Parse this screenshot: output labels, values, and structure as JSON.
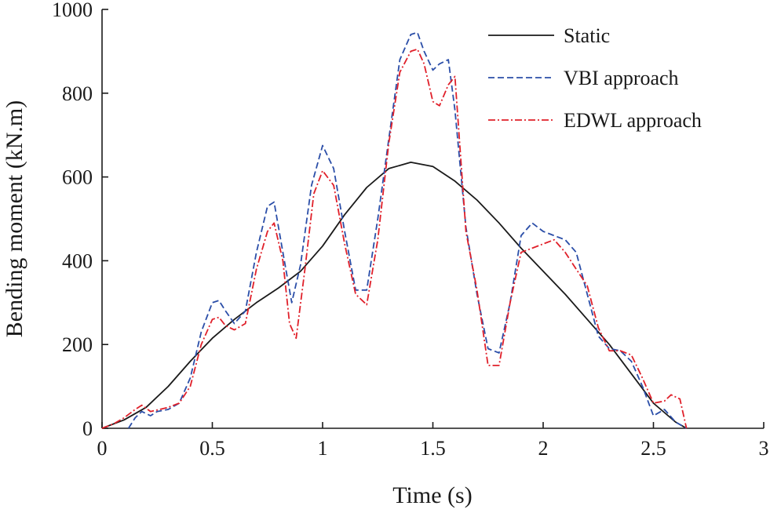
{
  "chart_data": {
    "type": "line",
    "title": "",
    "xlabel": "Time (s)",
    "ylabel": "Bending moment (kN.m)",
    "xlim": [
      0,
      3
    ],
    "ylim": [
      0,
      1000
    ],
    "xticks": [
      "0",
      "0.5",
      "1",
      "1.5",
      "2",
      "2.5",
      "3"
    ],
    "yticks": [
      "0",
      "200",
      "400",
      "600",
      "800",
      "1000"
    ],
    "grid": false,
    "legend_position": "top-right",
    "series": [
      {
        "name": "Static",
        "color": "#1a1a1a",
        "style": "solid",
        "x": [
          0,
          0.1,
          0.2,
          0.3,
          0.4,
          0.5,
          0.6,
          0.7,
          0.8,
          0.9,
          1.0,
          1.1,
          1.2,
          1.3,
          1.4,
          1.5,
          1.6,
          1.7,
          1.8,
          1.9,
          2.0,
          2.1,
          2.2,
          2.3,
          2.4,
          2.5,
          2.6,
          2.65
        ],
        "y": [
          0,
          20,
          50,
          100,
          160,
          215,
          260,
          300,
          335,
          375,
          435,
          510,
          575,
          620,
          635,
          625,
          590,
          545,
          490,
          430,
          375,
          320,
          260,
          200,
          130,
          60,
          15,
          0
        ]
      },
      {
        "name": "VBI approach",
        "color": "#2b4ea8",
        "style": "dashed",
        "x": [
          0.12,
          0.15,
          0.18,
          0.22,
          0.25,
          0.3,
          0.35,
          0.4,
          0.45,
          0.5,
          0.53,
          0.56,
          0.6,
          0.65,
          0.7,
          0.75,
          0.78,
          0.82,
          0.86,
          0.9,
          0.95,
          1.0,
          1.05,
          1.1,
          1.15,
          1.2,
          1.25,
          1.3,
          1.35,
          1.4,
          1.43,
          1.46,
          1.5,
          1.53,
          1.57,
          1.6,
          1.65,
          1.7,
          1.75,
          1.8,
          1.85,
          1.9,
          1.95,
          2.0,
          2.05,
          2.1,
          2.15,
          2.2,
          2.25,
          2.3,
          2.35,
          2.4,
          2.45,
          2.5,
          2.55,
          2.6,
          2.65
        ],
        "y": [
          0,
          25,
          40,
          30,
          40,
          45,
          60,
          120,
          230,
          300,
          305,
          280,
          250,
          280,
          420,
          530,
          540,
          420,
          300,
          390,
          580,
          675,
          620,
          470,
          330,
          330,
          500,
          690,
          880,
          940,
          945,
          900,
          855,
          870,
          880,
          760,
          480,
          320,
          190,
          180,
          300,
          460,
          490,
          470,
          460,
          450,
          420,
          320,
          220,
          190,
          185,
          160,
          100,
          30,
          45,
          15,
          0
        ]
      },
      {
        "name": "EDWL approach",
        "color": "#e0202a",
        "style": "dashdot",
        "x": [
          0,
          0.05,
          0.1,
          0.15,
          0.18,
          0.22,
          0.26,
          0.3,
          0.35,
          0.4,
          0.45,
          0.5,
          0.53,
          0.56,
          0.6,
          0.65,
          0.7,
          0.75,
          0.78,
          0.82,
          0.85,
          0.88,
          0.92,
          0.96,
          1.0,
          1.05,
          1.1,
          1.15,
          1.2,
          1.25,
          1.3,
          1.35,
          1.4,
          1.43,
          1.46,
          1.5,
          1.53,
          1.57,
          1.6,
          1.65,
          1.7,
          1.75,
          1.8,
          1.85,
          1.9,
          1.95,
          2.0,
          2.05,
          2.1,
          2.15,
          2.2,
          2.25,
          2.3,
          2.35,
          2.4,
          2.45,
          2.5,
          2.55,
          2.58,
          2.62,
          2.65
        ],
        "y": [
          0,
          10,
          25,
          45,
          55,
          40,
          45,
          50,
          60,
          100,
          200,
          260,
          265,
          245,
          235,
          250,
          380,
          470,
          490,
          400,
          250,
          215,
          380,
          560,
          615,
          580,
          440,
          320,
          295,
          450,
          680,
          850,
          900,
          905,
          870,
          780,
          770,
          820,
          840,
          470,
          330,
          150,
          150,
          300,
          420,
          430,
          440,
          450,
          420,
          380,
          340,
          240,
          185,
          185,
          175,
          120,
          60,
          65,
          80,
          70,
          0
        ]
      }
    ]
  }
}
